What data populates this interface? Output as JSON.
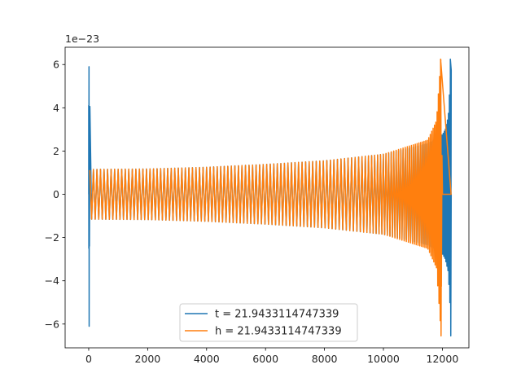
{
  "chart_data": {
    "type": "line",
    "title": "",
    "xlabel": "",
    "ylabel": "",
    "offset_text": "1e−23",
    "xlim": [
      -800,
      12900
    ],
    "ylim": [
      -7.1,
      6.8
    ],
    "xticks": [
      0,
      2000,
      4000,
      6000,
      8000,
      10000,
      12000
    ],
    "xtick_labels": [
      "0",
      "2000",
      "4000",
      "6000",
      "8000",
      "10000",
      "12000"
    ],
    "yticks": [
      -6,
      -4,
      -2,
      0,
      2,
      4,
      6
    ],
    "ytick_labels": [
      "−6",
      "−4",
      "−2",
      "0",
      "2",
      "4",
      "6"
    ],
    "grid": false,
    "legend_position": "lower-center",
    "series": [
      {
        "name": "t = 21.9433114747339",
        "color": "#1f77b4",
        "description_points": {
          "x": [
            0,
            100,
            2000,
            4000,
            6000,
            8000,
            10000,
            11500,
            12000,
            12100,
            12200,
            12300,
            12310
          ],
          "envelope": [
            6.0,
            1.15,
            1.17,
            1.25,
            1.38,
            1.55,
            1.85,
            2.35,
            2.75,
            3.0,
            3.6,
            6.2,
            0
          ]
        }
      },
      {
        "name": "h = 21.9433114747339",
        "color": "#ff7f0e",
        "description_points": {
          "x": [
            0,
            100,
            2000,
            4000,
            6000,
            8000,
            10000,
            11500,
            11800,
            11950,
            12000,
            12300
          ],
          "envelope": [
            1.1,
            1.15,
            1.17,
            1.25,
            1.38,
            1.55,
            1.85,
            2.5,
            3.4,
            6.3,
            0,
            0
          ]
        }
      }
    ]
  }
}
